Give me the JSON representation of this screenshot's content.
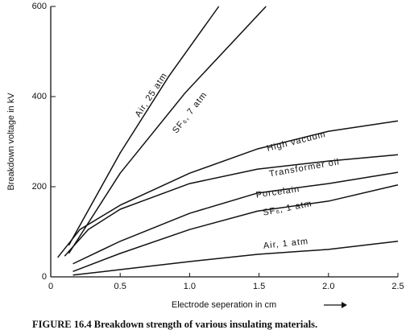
{
  "chart_data": {
    "type": "line",
    "xlabel": "Electrode seperation in cm",
    "ylabel": "Breakdown voltage in kV",
    "caption": "FIGURE 16.4   Breakdown strength of various insulating materials.",
    "xlim": [
      0,
      2.5
    ],
    "ylim": [
      0,
      600
    ],
    "xticks": [
      0,
      0.5,
      {
        "value": 1,
        "label": "1.0"
      },
      1.5,
      {
        "value": 2,
        "label": "2.0"
      },
      2.5
    ],
    "yticks": [
      0,
      200,
      400,
      600
    ],
    "series": [
      {
        "name": "Air, 25 atm",
        "color": "#111111",
        "x": [
          0.13,
          0.5,
          0.85,
          1.21
        ],
        "values": [
          70,
          275,
          445,
          600
        ]
      },
      {
        "name": "SF₆, 7 atm",
        "color": "#111111",
        "x": [
          0.13,
          0.5,
          0.97,
          1.55
        ],
        "values": [
          52,
          230,
          409,
          600
        ]
      },
      {
        "name": "High vacuum",
        "color": "#111111",
        "x": [
          0.05,
          0.21,
          0.5,
          1.0,
          1.49,
          2.0,
          2.5
        ],
        "values": [
          43,
          105,
          159,
          230,
          284,
          323,
          346
        ]
      },
      {
        "name": "Transformer oil",
        "color": "#111111",
        "x": [
          0.1,
          0.27,
          0.5,
          1.0,
          1.49,
          2.0,
          2.5
        ],
        "values": [
          46,
          105,
          150,
          207,
          239,
          257,
          271
        ]
      },
      {
        "name": "Porcelain",
        "color": "#111111",
        "x": [
          0.16,
          0.5,
          1.0,
          1.49,
          2.0,
          2.5
        ],
        "values": [
          29,
          79,
          141,
          186,
          207,
          232
        ]
      },
      {
        "name": "SF₆, 1 atm",
        "color": "#111111",
        "x": [
          0.16,
          0.5,
          1.0,
          1.49,
          2.0,
          2.5
        ],
        "values": [
          12,
          52,
          105,
          146,
          168,
          204
        ]
      },
      {
        "name": "Air, 1 atm",
        "color": "#111111",
        "x": [
          0.16,
          0.5,
          1.0,
          1.49,
          2.0,
          2.5
        ],
        "values": [
          4,
          16,
          34,
          50,
          61,
          79
        ]
      }
    ]
  }
}
